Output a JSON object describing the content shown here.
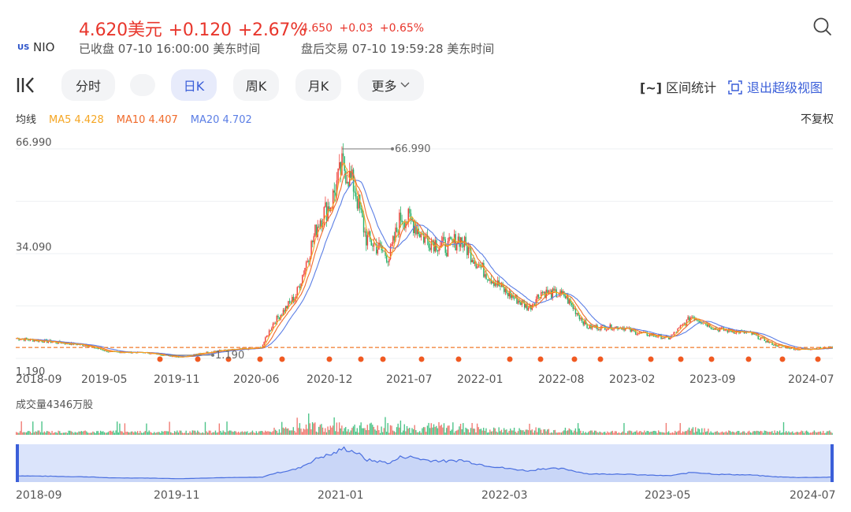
{
  "quote": {
    "price": "4.620美元",
    "change": "+0.120",
    "change_pct": "+2.67%",
    "after_price": "4.650",
    "after_change": "+0.03",
    "after_change_pct": "+0.65%",
    "market_badge": "US",
    "ticker": "NIO",
    "close_status": "已收盘 07-10 16:00:00 美东时间",
    "after_status": "盘后交易 07-10 19:59:28 美东时间",
    "up_color": "#e8362c"
  },
  "toolbar": {
    "chart_type_icon": "kline-icon",
    "tabs": [
      "分时",
      "",
      "日K",
      "周K",
      "月K",
      "更多"
    ],
    "active_tab": "日K",
    "more_icon": "chevron-down-icon",
    "range_stat_icon": "[~]",
    "range_stat_label": "区间统计",
    "exit_icon": "focus-icon",
    "exit_label": "退出超级视图",
    "accent_color": "#3b5fd9"
  },
  "ma": {
    "title": "均线",
    "ma5": "MA5 4.428",
    "ma10": "MA10 4.407",
    "ma20": "MA20 4.702",
    "ma5_color": "#f5a623",
    "ma10_color": "#f06a2a",
    "ma20_color": "#5b7ee5",
    "adjust_label": "不复权"
  },
  "chart_data": {
    "type": "candlestick",
    "y_tick_labels": [
      "66.990",
      "34.090",
      "1.190"
    ],
    "high_label": "66.990",
    "low_label": "1.190",
    "x_tick_labels": [
      "2018-09",
      "2019-05",
      "2019-11",
      "2020-06",
      "2020-12",
      "2021-07",
      "2022-01",
      "2022-08",
      "2023-02",
      "2023-09",
      "2024-07"
    ],
    "close_series_approx": [
      {
        "date": "2018-09",
        "close": 7.5
      },
      {
        "date": "2018-12",
        "close": 6.4
      },
      {
        "date": "2019-03",
        "close": 5.3
      },
      {
        "date": "2019-05",
        "close": 3.2
      },
      {
        "date": "2019-08",
        "close": 3.0
      },
      {
        "date": "2019-11",
        "close": 1.6
      },
      {
        "date": "2020-02",
        "close": 3.5
      },
      {
        "date": "2020-06",
        "close": 4.5
      },
      {
        "date": "2020-07",
        "close": 12.0
      },
      {
        "date": "2020-09",
        "close": 21.0
      },
      {
        "date": "2020-11",
        "close": 45.0
      },
      {
        "date": "2020-12",
        "close": 50.0
      },
      {
        "date": "2021-01",
        "close": 62.0
      },
      {
        "date": "2021-02",
        "close": 55.0
      },
      {
        "date": "2021-03",
        "close": 39.0
      },
      {
        "date": "2021-05",
        "close": 33.0
      },
      {
        "date": "2021-06",
        "close": 46.0
      },
      {
        "date": "2021-07",
        "close": 44.0
      },
      {
        "date": "2021-08",
        "close": 39.0
      },
      {
        "date": "2021-10",
        "close": 36.0
      },
      {
        "date": "2021-11",
        "close": 39.0
      },
      {
        "date": "2022-01",
        "close": 29.0
      },
      {
        "date": "2022-03",
        "close": 22.0
      },
      {
        "date": "2022-05",
        "close": 17.0
      },
      {
        "date": "2022-06",
        "close": 22.0
      },
      {
        "date": "2022-08",
        "close": 21.0
      },
      {
        "date": "2022-10",
        "close": 11.0
      },
      {
        "date": "2023-01",
        "close": 11.0
      },
      {
        "date": "2023-02",
        "close": 9.5
      },
      {
        "date": "2023-05",
        "close": 7.5
      },
      {
        "date": "2023-07",
        "close": 14.5
      },
      {
        "date": "2023-09",
        "close": 10.5
      },
      {
        "date": "2023-12",
        "close": 9.0
      },
      {
        "date": "2024-02",
        "close": 5.5
      },
      {
        "date": "2024-04",
        "close": 4.0
      },
      {
        "date": "2024-07",
        "close": 4.62
      }
    ],
    "reference_line": 4.62,
    "volume_label": "成交量4346万股",
    "navigator_x_tick_labels": [
      "2018-09",
      "2019-11",
      "2021-01",
      "2022-03",
      "2023-05",
      "2024-07"
    ]
  }
}
